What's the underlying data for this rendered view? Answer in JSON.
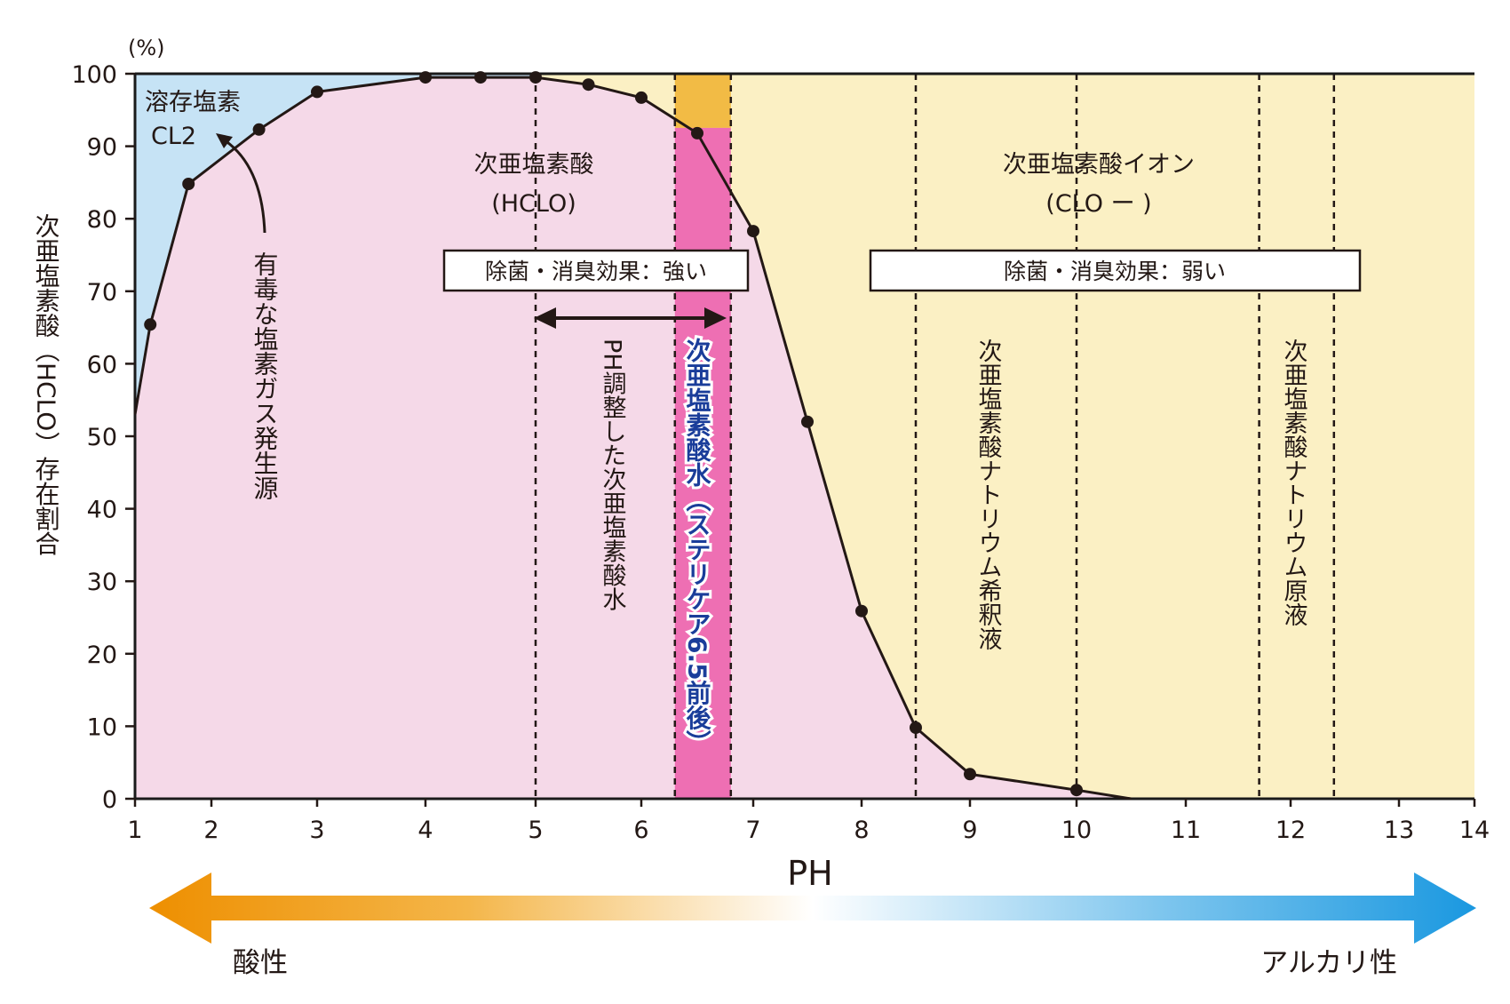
{
  "chart_data": {
    "type": "line",
    "y_unit": "(%)",
    "ylabel": "次亜塩素酸（HCLO）存在割合",
    "xlabel": "PH",
    "xlim": [
      1,
      14
    ],
    "ylim": [
      0,
      100
    ],
    "x_ticks": [
      "1",
      "2",
      "3",
      "4",
      "5",
      "6",
      "7",
      "8",
      "9",
      "10",
      "11",
      "12",
      "13",
      "14"
    ],
    "y_ticks": [
      "0",
      "10",
      "20",
      "30",
      "40",
      "50",
      "60",
      "70",
      "80",
      "90",
      "100"
    ],
    "series": [
      {
        "points": [
          [
            1.2,
            65.4
          ],
          [
            1.7,
            84.8
          ],
          [
            2.45,
            92.3
          ],
          [
            3.0,
            97.5
          ],
          [
            4.0,
            99.5
          ],
          [
            4.5,
            99.5
          ],
          [
            5.0,
            99.5
          ],
          [
            5.5,
            98.5
          ],
          [
            6.0,
            96.7
          ],
          [
            6.5,
            91.8
          ],
          [
            7.0,
            78.3
          ],
          [
            7.5,
            52.0
          ],
          [
            8.0,
            25.9
          ],
          [
            8.5,
            9.8
          ],
          [
            9.0,
            3.4
          ],
          [
            10.0,
            1.2
          ]
        ]
      }
    ],
    "curve_start": [
      1.0,
      53.0
    ],
    "curve_end": [
      10.5,
      0.0
    ],
    "regions": {
      "cl2": {
        "label_line1": "溶存塩素",
        "label_line2": "CL2",
        "color": "#c6e3f5"
      },
      "hclo": {
        "label_line1": "次亜塩素酸",
        "label_line2": "(HCLO)",
        "color": "#f5d9e8"
      },
      "clo": {
        "label_line1": "次亜塩素酸イオン",
        "label_line2": "(CLO ー )",
        "color": "#fbf0c4"
      },
      "band_top_color": "#f2bb45",
      "band_color": "#ee6fb3"
    },
    "vlines": [
      5.0,
      6.3,
      6.8,
      8.5,
      10.0,
      11.7,
      12.4
    ],
    "annotations": {
      "toxic_gas": "有毒な塩素ガス発生源",
      "effect_strong": "除菌・消臭効果：強い",
      "effect_weak": "除菌・消臭効果：弱い",
      "ph_adjusted": "PH調整した次亜塩素酸水",
      "sterilicare": "次亜塩素酸水（ステリケア6.5前後）",
      "sodium_diluted": "次亜塩素酸ナトリウム希釈液",
      "sodium_stock": "次亜塩素酸ナトリウム原液"
    },
    "scale": {
      "acid_label": "酸性",
      "alkaline_label": "アルカリ性",
      "acid_color": "#ee8f00",
      "alkaline_color": "#1a98e0"
    },
    "grid": false,
    "legend": "none"
  }
}
